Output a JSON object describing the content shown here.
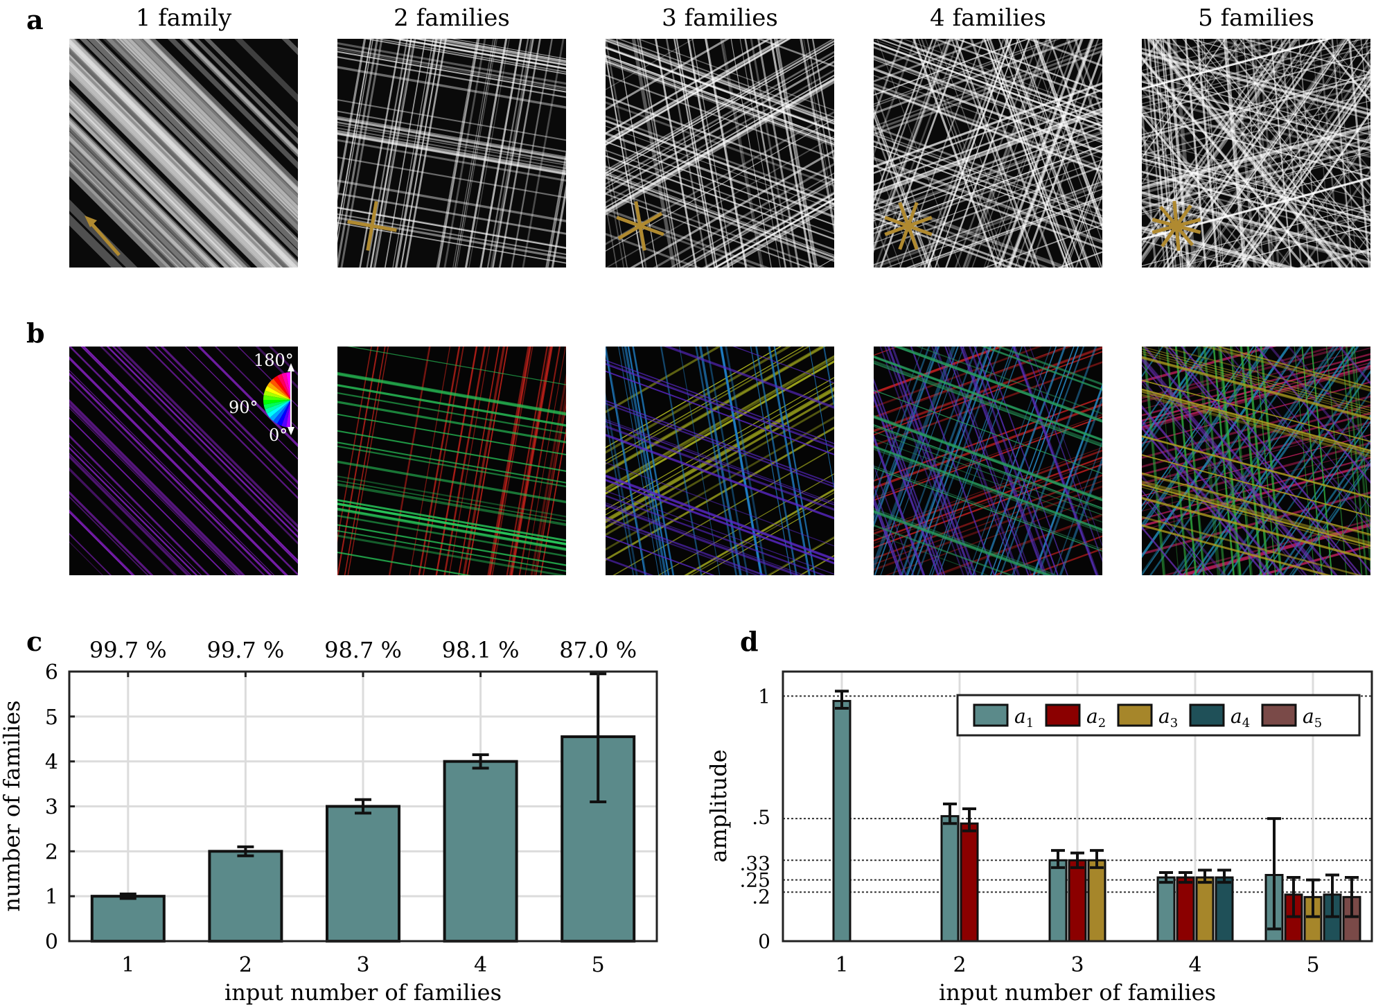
{
  "panels": {
    "a": "a",
    "b": "b",
    "c": "c",
    "d": "d"
  },
  "columns": [
    {
      "title": "1 family",
      "angles": [
        135
      ]
    },
    {
      "title": "2 families",
      "angles": [
        80,
        170
      ]
    },
    {
      "title": "3 families",
      "angles": [
        30,
        100,
        160
      ]
    },
    {
      "title": "4 families",
      "angles": [
        20,
        70,
        110,
        160
      ]
    },
    {
      "title": "5 families",
      "angles": [
        15,
        55,
        95,
        130,
        165
      ]
    }
  ],
  "colorwheel": {
    "top": "180°",
    "mid": "90°",
    "bottom": "0°"
  },
  "colors": {
    "bar": "#5b8a8a",
    "a1": "#5b8a8a",
    "a2": "#8b0000",
    "a3": "#a6862a",
    "a4": "#1f5058",
    "a5": "#7a4a48",
    "arrow": "#b08a30"
  },
  "chart_data": [
    {
      "type": "bar",
      "title": "",
      "categories": [
        "1",
        "2",
        "3",
        "4",
        "5"
      ],
      "values": [
        1.0,
        2.0,
        3.0,
        4.0,
        4.55
      ],
      "error_low": [
        0.95,
        1.9,
        2.85,
        3.85,
        3.1
      ],
      "error_high": [
        1.05,
        2.1,
        3.15,
        4.15,
        5.95
      ],
      "percent_labels": [
        "99.7 %",
        "99.7 %",
        "98.7 %",
        "98.1 %",
        "87.0 %"
      ],
      "xlabel": "input number of families",
      "ylabel": "number of families",
      "ylim": [
        0,
        6
      ],
      "yticks": [
        "0",
        "1",
        "2",
        "3",
        "4",
        "5",
        "6"
      ],
      "grid": true
    },
    {
      "type": "bar",
      "title": "",
      "categories": [
        "1",
        "2",
        "3",
        "4",
        "5"
      ],
      "xlabel": "input number of families",
      "ylabel": "amplitude",
      "ylim": [
        0,
        1.1
      ],
      "ytick_values": [
        0,
        0.2,
        0.25,
        0.33,
        0.5,
        1
      ],
      "ytick_labels": [
        "0",
        ".2",
        ".25",
        ".33",
        ".5",
        "1"
      ],
      "legend": [
        "a1",
        "a2",
        "a3",
        "a4",
        "a5"
      ],
      "legend_position": "top-right",
      "series": [
        {
          "name": "a1",
          "values": [
            0.98,
            0.51,
            0.33,
            0.26,
            0.27
          ],
          "err_low": [
            0.95,
            0.48,
            0.3,
            0.24,
            0.05
          ],
          "err_high": [
            1.02,
            0.56,
            0.37,
            0.28,
            0.5
          ]
        },
        {
          "name": "a2",
          "values": [
            null,
            0.48,
            0.33,
            0.26,
            0.19
          ],
          "err_low": [
            null,
            0.45,
            0.3,
            0.24,
            0.1
          ],
          "err_high": [
            null,
            0.54,
            0.36,
            0.28,
            0.26
          ]
        },
        {
          "name": "a3",
          "values": [
            null,
            null,
            0.33,
            0.26,
            0.18
          ],
          "err_low": [
            null,
            null,
            0.3,
            0.24,
            0.1
          ],
          "err_high": [
            null,
            null,
            0.37,
            0.29,
            0.25
          ]
        },
        {
          "name": "a4",
          "values": [
            null,
            null,
            null,
            0.26,
            0.19
          ],
          "err_low": [
            null,
            null,
            null,
            0.24,
            0.1
          ],
          "err_high": [
            null,
            null,
            null,
            0.29,
            0.27
          ]
        },
        {
          "name": "a5",
          "values": [
            null,
            null,
            null,
            null,
            0.18
          ],
          "err_low": [
            null,
            null,
            null,
            null,
            0.1
          ],
          "err_high": [
            null,
            null,
            null,
            null,
            0.26
          ]
        }
      ],
      "grid": true
    }
  ]
}
